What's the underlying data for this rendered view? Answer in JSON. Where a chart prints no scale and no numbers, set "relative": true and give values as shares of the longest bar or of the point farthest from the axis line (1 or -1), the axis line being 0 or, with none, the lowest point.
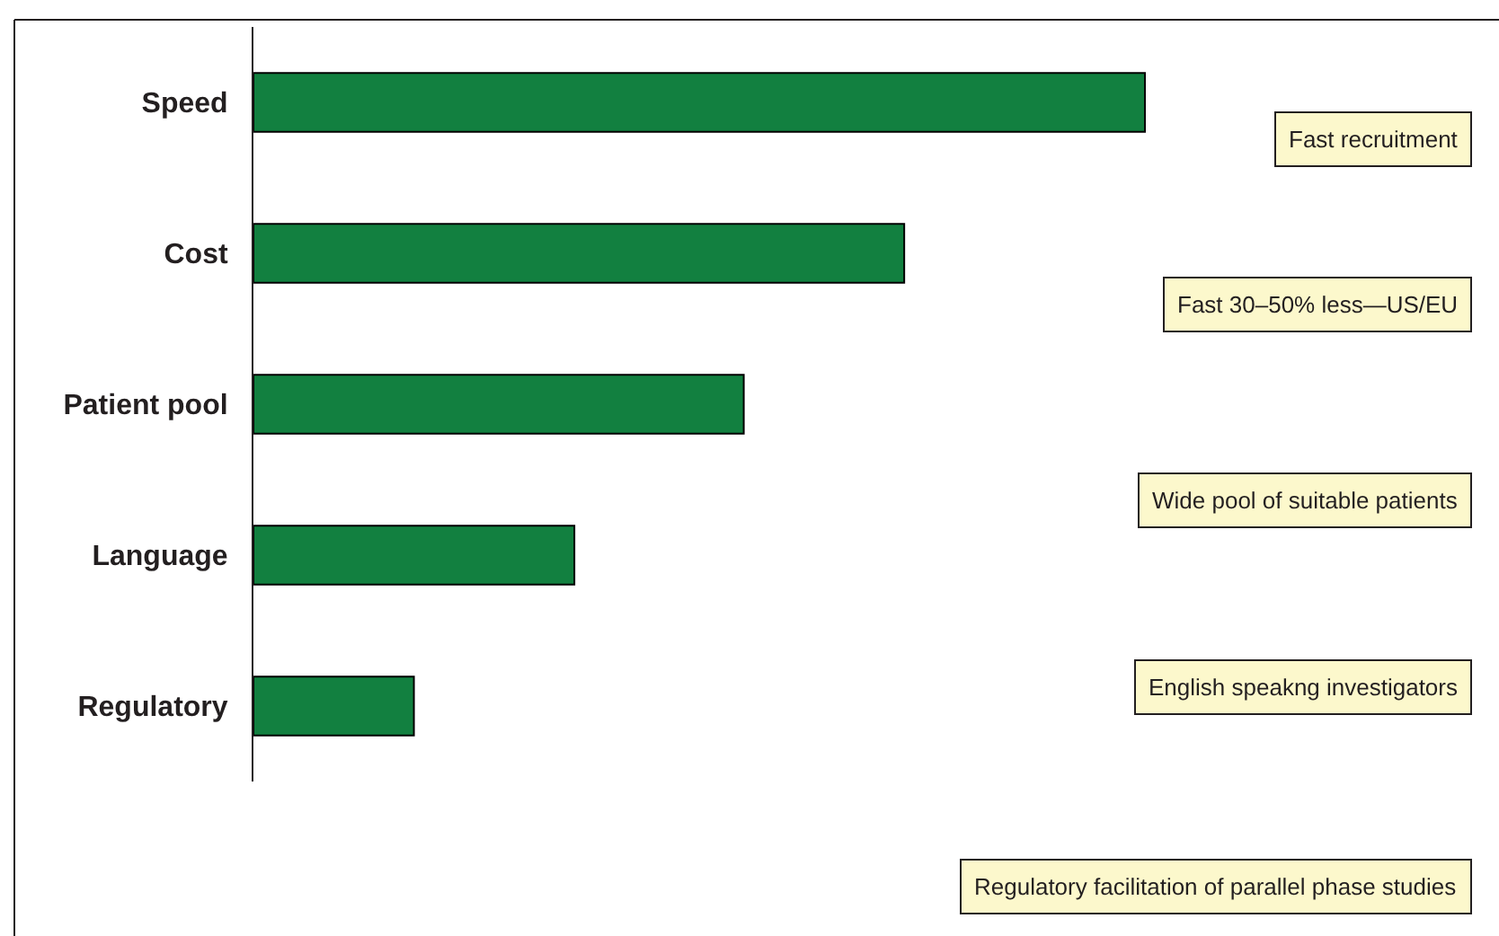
{
  "chart_data": {
    "type": "bar",
    "orientation": "horizontal",
    "relative": true,
    "categories": [
      "Speed",
      "Cost",
      "Patient pool",
      "Language",
      "Regulatory"
    ],
    "values": [
      1,
      0.73,
      0.55,
      0.36,
      0.18
    ],
    "color": "#128040",
    "annotations": [
      "Fast recruitment",
      "Fast 30–50% less—US/EU",
      "Wide pool of suitable patients",
      "English speakng investigators",
      "Regulatory facilitation of parallel phase studies"
    ]
  }
}
